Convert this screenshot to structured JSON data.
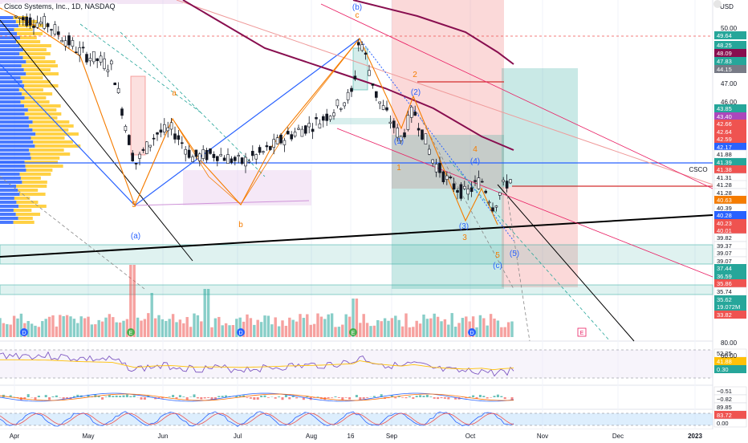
{
  "header": {
    "symbol_title": "Cisco Systems, Inc., 1D, NASDAQ",
    "currency": "USD",
    "ticker_label": "CSCO"
  },
  "colors": {
    "up": "#26a69a",
    "down": "#ef5350",
    "ma_purple": "#880e4f",
    "trend_blue": "#2962ff",
    "wave_orange": "#f57c00",
    "trend_black": "#000000",
    "channel_pink": "#e91e63",
    "profile_blue": "#2962ff",
    "profile_yellow": "#ffc107"
  },
  "chart_data": [
    {
      "type": "line",
      "title": "",
      "subtitle": "candlestick price, daily",
      "x_ticks": [
        "Apr",
        "May",
        "Jun",
        "Jul",
        "Aug",
        "16",
        "Sep",
        "Oct",
        "Nov",
        "Dec",
        "2023"
      ],
      "y_ticks": [
        50.0,
        49.0,
        48.0,
        47.0,
        46.0
      ],
      "ylim": [
        33.5,
        51.5
      ],
      "price_tags": [
        {
          "label": "49.64",
          "value": 49.64,
          "color": "#26a69a"
        },
        {
          "label": "48.25",
          "value": 48.25,
          "color": "#26a69a"
        },
        {
          "label": "48.09",
          "value": 48.09,
          "color": "#880e4f"
        },
        {
          "label": "47.83",
          "value": 47.83,
          "color": "#26a69a"
        },
        {
          "label": "44.15",
          "value": 44.15,
          "color": "#787b86"
        },
        {
          "label": "43.85",
          "value": 43.85,
          "color": "#26a69a"
        },
        {
          "label": "43.40",
          "value": 43.4,
          "color": "#ab47bc"
        },
        {
          "label": "42.66",
          "value": 42.66,
          "color": "#ef5350"
        },
        {
          "label": "42.64",
          "value": 42.64,
          "color": "#ef5350"
        },
        {
          "label": "42.59",
          "value": 42.59,
          "color": "#ef5350"
        },
        {
          "label": "42.17",
          "value": 42.17,
          "color": "#2962ff"
        },
        {
          "label": "41.88",
          "value": 41.88,
          "color": "#ffffff"
        },
        {
          "label": "41.39",
          "value": 41.39,
          "color": "#26a69a"
        },
        {
          "label": "41.38",
          "value": 41.38,
          "color": "#ef5350"
        },
        {
          "label": "41.31",
          "value": 41.31,
          "color": "#ffffff"
        },
        {
          "label": "41.28",
          "value": 41.28,
          "color": "#ffffff"
        },
        {
          "label": "41.28",
          "value": 41.28,
          "color": "#ffffff"
        },
        {
          "label": "40.63",
          "value": 40.63,
          "color": "#f57c00"
        },
        {
          "label": "40.39",
          "value": 40.39,
          "color": "#ffffff"
        },
        {
          "label": "40.28",
          "value": 40.28,
          "color": "#2962ff"
        },
        {
          "label": "40.23",
          "value": 40.23,
          "color": "#ef5350"
        },
        {
          "label": "40.01",
          "value": 40.01,
          "color": "#ef5350"
        },
        {
          "label": "39.82",
          "value": 39.82,
          "color": "#ffffff"
        },
        {
          "label": "39.37",
          "value": 39.37,
          "color": "#ffffff"
        },
        {
          "label": "39.07",
          "value": 39.07,
          "color": "#ffffff"
        },
        {
          "label": "39.07",
          "value": 39.07,
          "color": "#ffffff"
        },
        {
          "label": "37.44",
          "value": 37.44,
          "color": "#26a69a"
        },
        {
          "label": "36.59",
          "value": 36.59,
          "color": "#26a69a"
        },
        {
          "label": "35.86",
          "value": 35.86,
          "color": "#ef5350"
        },
        {
          "label": "35.74",
          "value": 35.74,
          "color": "#ffffff"
        },
        {
          "label": "35.62",
          "value": 35.62,
          "color": "#26a69a"
        },
        {
          "label": "19.072M",
          "value": 19.072,
          "color": "#26a69a"
        },
        {
          "label": "33.82",
          "value": 33.82,
          "color": "#ef5350"
        }
      ],
      "wave_labels": [
        "(b)",
        "c",
        "a",
        "b",
        "5",
        "(a)",
        "2",
        "(2)",
        "1",
        "(1)",
        "(3)",
        "3",
        "(4)",
        "4",
        "(5)",
        "5",
        "(c)"
      ],
      "event_markers": [
        "D",
        "E",
        "D",
        "E",
        "D",
        "E"
      ],
      "grid": true
    },
    {
      "type": "line",
      "title": "",
      "subtitle": "RSI pane",
      "y_ticks": [
        80.0,
        60.0
      ],
      "price_tags": [
        {
          "label": "52.25",
          "value": 52.25,
          "color": "#ffffff"
        },
        {
          "label": "41.88",
          "value": 41.88,
          "color": "#ffc107"
        }
      ]
    },
    {
      "type": "bar",
      "title": "",
      "subtitle": "MACD pane",
      "price_tags": [
        {
          "label": "0.30",
          "value": 0.3,
          "color": "#26a69a"
        },
        {
          "label": "−0.51",
          "value": -0.51,
          "color": "#ffffff"
        },
        {
          "label": "−0.82",
          "value": -0.82,
          "color": "#ffffff"
        }
      ]
    },
    {
      "type": "line",
      "title": "",
      "subtitle": "stochastic pane",
      "price_tags": [
        {
          "label": "89.85",
          "value": 89.85,
          "color": "#ffffff"
        },
        {
          "label": "83.72",
          "value": 83.72,
          "color": "#ef5350"
        },
        {
          "label": "0.00",
          "value": 0.0,
          "color": "#ffffff"
        }
      ]
    }
  ]
}
